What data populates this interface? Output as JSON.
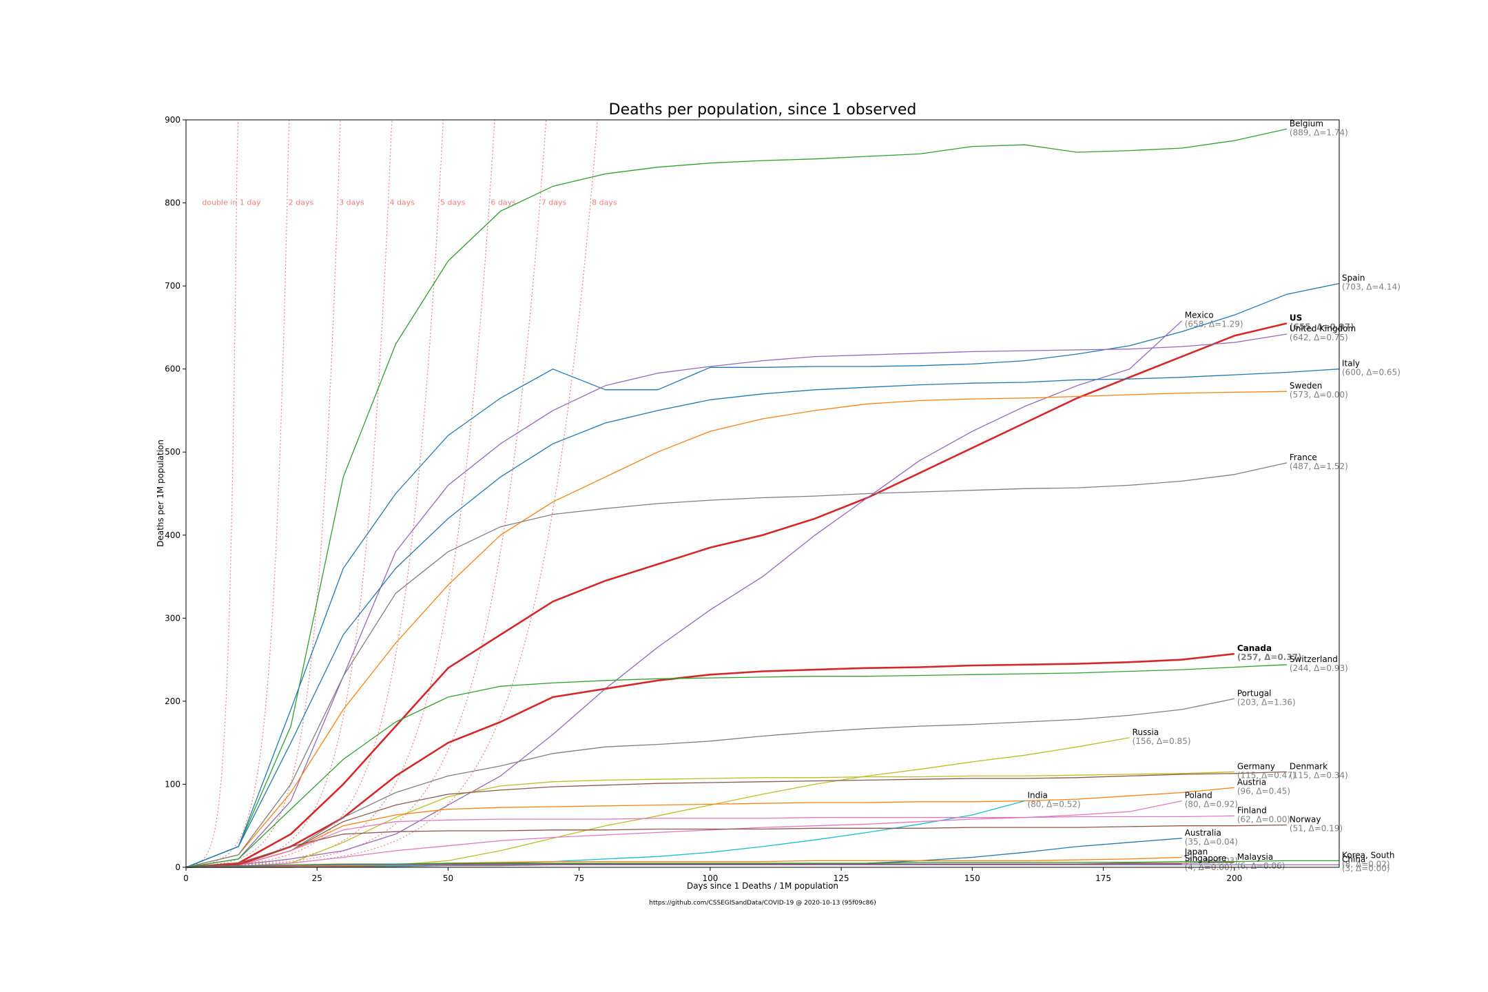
{
  "chart_data": {
    "type": "line",
    "title": "Deaths per population, since 1 observed",
    "x_label": "Days since 1 Deaths / 1M population",
    "y_label": "Deaths per 1M population",
    "footer": "https://github.com/CSSEGISandData/COVID-19 @ 2020-10-13 (95f09c86)",
    "xlim": [
      0,
      220
    ],
    "ylim": [
      0,
      900
    ],
    "xticks": [
      0,
      25,
      50,
      75,
      100,
      125,
      150,
      175,
      200
    ],
    "yticks": [
      0,
      100,
      200,
      300,
      400,
      500,
      600,
      700,
      800,
      900
    ],
    "reference_color": "#f08080",
    "reference_lines": [
      {
        "label": "double in 1 day",
        "doubling_days": 1
      },
      {
        "label": "2 days",
        "doubling_days": 2
      },
      {
        "label": "3 days",
        "doubling_days": 3
      },
      {
        "label": "4 days",
        "doubling_days": 4
      },
      {
        "label": "5 days",
        "doubling_days": 5
      },
      {
        "label": "6 days",
        "doubling_days": 6
      },
      {
        "label": "7 days",
        "doubling_days": 7
      },
      {
        "label": "8 days",
        "doubling_days": 8
      }
    ],
    "x": [
      0,
      10,
      20,
      30,
      40,
      50,
      60,
      70,
      80,
      90,
      100,
      110,
      120,
      130,
      140,
      150,
      160,
      170,
      180,
      190,
      200,
      210,
      220
    ],
    "series": [
      {
        "name": "Belgium",
        "annotation": "(889, Δ=1.74)",
        "color": "#2ca02c",
        "values": [
          0,
          25,
          170,
          470,
          630,
          730,
          790,
          820,
          835,
          843,
          848,
          851,
          853,
          856,
          859,
          868,
          870,
          861,
          863,
          866,
          875,
          889,
          null
        ]
      },
      {
        "name": "Spain",
        "annotation": "(703, Δ=4.14)",
        "color": "#1f77b4",
        "values": [
          0,
          25,
          190,
          360,
          450,
          520,
          565,
          600,
          575,
          575,
          602,
          602,
          603,
          603,
          604,
          606,
          610,
          618,
          628,
          645,
          665,
          690,
          703
        ]
      },
      {
        "name": "US",
        "annotation": "(655, Δ=0.97)",
        "color": "#d62728",
        "bold": true,
        "values": [
          0,
          5,
          40,
          100,
          170,
          240,
          280,
          320,
          345,
          365,
          385,
          400,
          420,
          445,
          475,
          505,
          535,
          565,
          590,
          615,
          640,
          655,
          null
        ]
      },
      {
        "name": "United Kingdom",
        "annotation": "(642, Δ=0.75)",
        "color": "#9467bd",
        "values": [
          0,
          10,
          80,
          230,
          380,
          460,
          510,
          550,
          580,
          595,
          603,
          610,
          615,
          617,
          619,
          621,
          622,
          623,
          624,
          627,
          632,
          642,
          null
        ]
      },
      {
        "name": "Mexico",
        "annotation": "(658, Δ=1.29)",
        "color": "#9467bd",
        "values": [
          0,
          3,
          10,
          20,
          40,
          75,
          110,
          160,
          215,
          265,
          310,
          350,
          400,
          445,
          490,
          525,
          555,
          580,
          600,
          658,
          null,
          null,
          null
        ]
      },
      {
        "name": "Italy",
        "annotation": "(600, Δ=0.65)",
        "color": "#1f77b4",
        "values": [
          0,
          25,
          150,
          280,
          360,
          420,
          470,
          510,
          535,
          550,
          563,
          570,
          575,
          578,
          581,
          583,
          584,
          587,
          588,
          590,
          593,
          596,
          600
        ]
      },
      {
        "name": "Sweden",
        "annotation": "(573, Δ=0.00)",
        "color": "#ff7f0e",
        "values": [
          0,
          15,
          90,
          190,
          270,
          340,
          400,
          440,
          470,
          500,
          525,
          540,
          550,
          558,
          562,
          564,
          565,
          567,
          569,
          571,
          572,
          573,
          null
        ]
      },
      {
        "name": "France",
        "annotation": "(487, Δ=1.52)",
        "color": "#7f7f7f",
        "values": [
          0,
          15,
          100,
          230,
          330,
          380,
          410,
          425,
          432,
          438,
          442,
          445,
          447,
          450,
          452,
          454,
          456,
          457,
          460,
          465,
          473,
          487,
          null
        ]
      },
      {
        "name": "Canada",
        "annotation": "(257, Δ=0.37)",
        "color": "#d62728",
        "bold": true,
        "values": [
          0,
          3,
          25,
          60,
          110,
          150,
          175,
          205,
          215,
          225,
          232,
          236,
          238,
          240,
          241,
          243,
          244,
          245,
          247,
          250,
          257,
          null,
          null
        ]
      },
      {
        "name": "Switzerland",
        "annotation": "(244, Δ=0.93)",
        "color": "#2ca02c",
        "values": [
          0,
          10,
          70,
          130,
          175,
          205,
          218,
          222,
          225,
          227,
          228,
          229,
          230,
          230,
          231,
          232,
          233,
          234,
          236,
          238,
          241,
          244,
          null
        ]
      },
      {
        "name": "Portugal",
        "annotation": "(203, Δ=1.36)",
        "color": "#7f7f7f",
        "values": [
          0,
          2,
          20,
          60,
          90,
          110,
          122,
          137,
          145,
          148,
          152,
          158,
          163,
          167,
          170,
          172,
          175,
          178,
          183,
          190,
          203,
          null,
          null
        ]
      },
      {
        "name": "Russia",
        "annotation": "(156, Δ=0.85)",
        "color": "#bcbd22",
        "values": [
          0,
          0,
          0,
          1,
          3,
          8,
          20,
          35,
          50,
          62,
          75,
          88,
          100,
          110,
          118,
          127,
          135,
          145,
          156,
          null,
          null,
          null,
          null
        ]
      },
      {
        "name": "Germany",
        "annotation": "(115, Δ=0.47)",
        "color": "#bcbd22",
        "values": [
          0,
          1,
          5,
          30,
          60,
          85,
          98,
          103,
          105,
          106,
          107,
          108,
          108,
          109,
          109,
          110,
          110,
          111,
          112,
          113,
          115,
          null,
          null
        ]
      },
      {
        "name": "Denmark",
        "annotation": "(115, Δ=0.34)",
        "color": "#8c564b",
        "values": [
          0,
          2,
          20,
          55,
          75,
          88,
          93,
          97,
          99,
          101,
          102,
          103,
          104,
          105,
          106,
          107,
          107,
          108,
          110,
          112,
          113,
          115,
          null
        ]
      },
      {
        "name": "Austria",
        "annotation": "(96, Δ=0.45)",
        "color": "#ff7f0e",
        "values": [
          0,
          2,
          20,
          50,
          63,
          70,
          72,
          73,
          74,
          75,
          76,
          77,
          78,
          78,
          79,
          79,
          80,
          82,
          86,
          90,
          96,
          null,
          null
        ]
      },
      {
        "name": "India",
        "annotation": "(80, Δ=0.52)",
        "color": "#17becf",
        "values": [
          0,
          0,
          0,
          1,
          2,
          3,
          5,
          7,
          10,
          13,
          18,
          25,
          33,
          42,
          52,
          63,
          80,
          null,
          null,
          null,
          null,
          null,
          null
        ]
      },
      {
        "name": "Poland",
        "annotation": "(80, Δ=0.92)",
        "color": "#e377c2",
        "values": [
          0,
          1,
          5,
          12,
          20,
          26,
          32,
          36,
          39,
          42,
          45,
          48,
          50,
          52,
          55,
          58,
          60,
          63,
          67,
          80,
          null,
          null,
          null
        ]
      },
      {
        "name": "Finland",
        "annotation": "(62, Δ=0.00)",
        "color": "#e377c2",
        "values": [
          0,
          2,
          20,
          45,
          55,
          57,
          58,
          58,
          58,
          59,
          59,
          59,
          60,
          60,
          60,
          60,
          60,
          61,
          61,
          61,
          62,
          null,
          null
        ]
      },
      {
        "name": "Norway",
        "annotation": "(51, Δ=0.19)",
        "color": "#8c564b",
        "values": [
          0,
          5,
          25,
          40,
          43,
          44,
          44,
          45,
          45,
          46,
          46,
          46,
          47,
          47,
          47,
          48,
          48,
          48,
          49,
          50,
          50,
          51,
          null
        ]
      },
      {
        "name": "Australia",
        "annotation": "(35, Δ=0.04)",
        "color": "#1f77b4",
        "values": [
          0,
          1,
          2,
          3,
          4,
          4,
          4,
          4,
          4,
          4,
          4,
          4,
          4,
          5,
          8,
          12,
          18,
          25,
          30,
          35,
          null,
          null,
          null
        ]
      },
      {
        "name": "Japan",
        "annotation": "(12, Δ=0.03)",
        "color": "#ff7f0e",
        "values": [
          0,
          0,
          1,
          2,
          3,
          5,
          6,
          7,
          7,
          7,
          7,
          7,
          8,
          8,
          8,
          8,
          8,
          9,
          10,
          12,
          null,
          null,
          null
        ]
      },
      {
        "name": "Singapore",
        "annotation": "(4, Δ=0.00)",
        "color": "#7f7f7f",
        "values": [
          0,
          0,
          0,
          1,
          1,
          2,
          2,
          3,
          3,
          4,
          4,
          4,
          4,
          4,
          4,
          4,
          4,
          4,
          4,
          4,
          null,
          null,
          null
        ]
      },
      {
        "name": "Malaysia",
        "annotation": "(6, Δ=0.06)",
        "color": "#8c564b",
        "values": [
          0,
          1,
          2,
          3,
          3,
          4,
          4,
          4,
          4,
          4,
          4,
          4,
          4,
          4,
          4,
          4,
          4,
          4,
          5,
          5,
          6,
          null,
          null
        ]
      },
      {
        "name": "Korea, South",
        "annotation": "(8, Δ=0.02)",
        "color": "#2ca02c",
        "values": [
          0,
          2,
          3,
          4,
          4,
          5,
          5,
          5,
          5,
          5,
          5,
          5,
          5,
          5,
          6,
          6,
          6,
          6,
          6,
          7,
          7,
          8,
          8
        ]
      },
      {
        "name": "China",
        "annotation": "(3, Δ=0.00)",
        "color": "#9467bd",
        "values": [
          0,
          1,
          2,
          3,
          3,
          3,
          3,
          3,
          3,
          3,
          3,
          3,
          3,
          3,
          3,
          3,
          3,
          3,
          3,
          3,
          3,
          3,
          3
        ]
      }
    ]
  }
}
